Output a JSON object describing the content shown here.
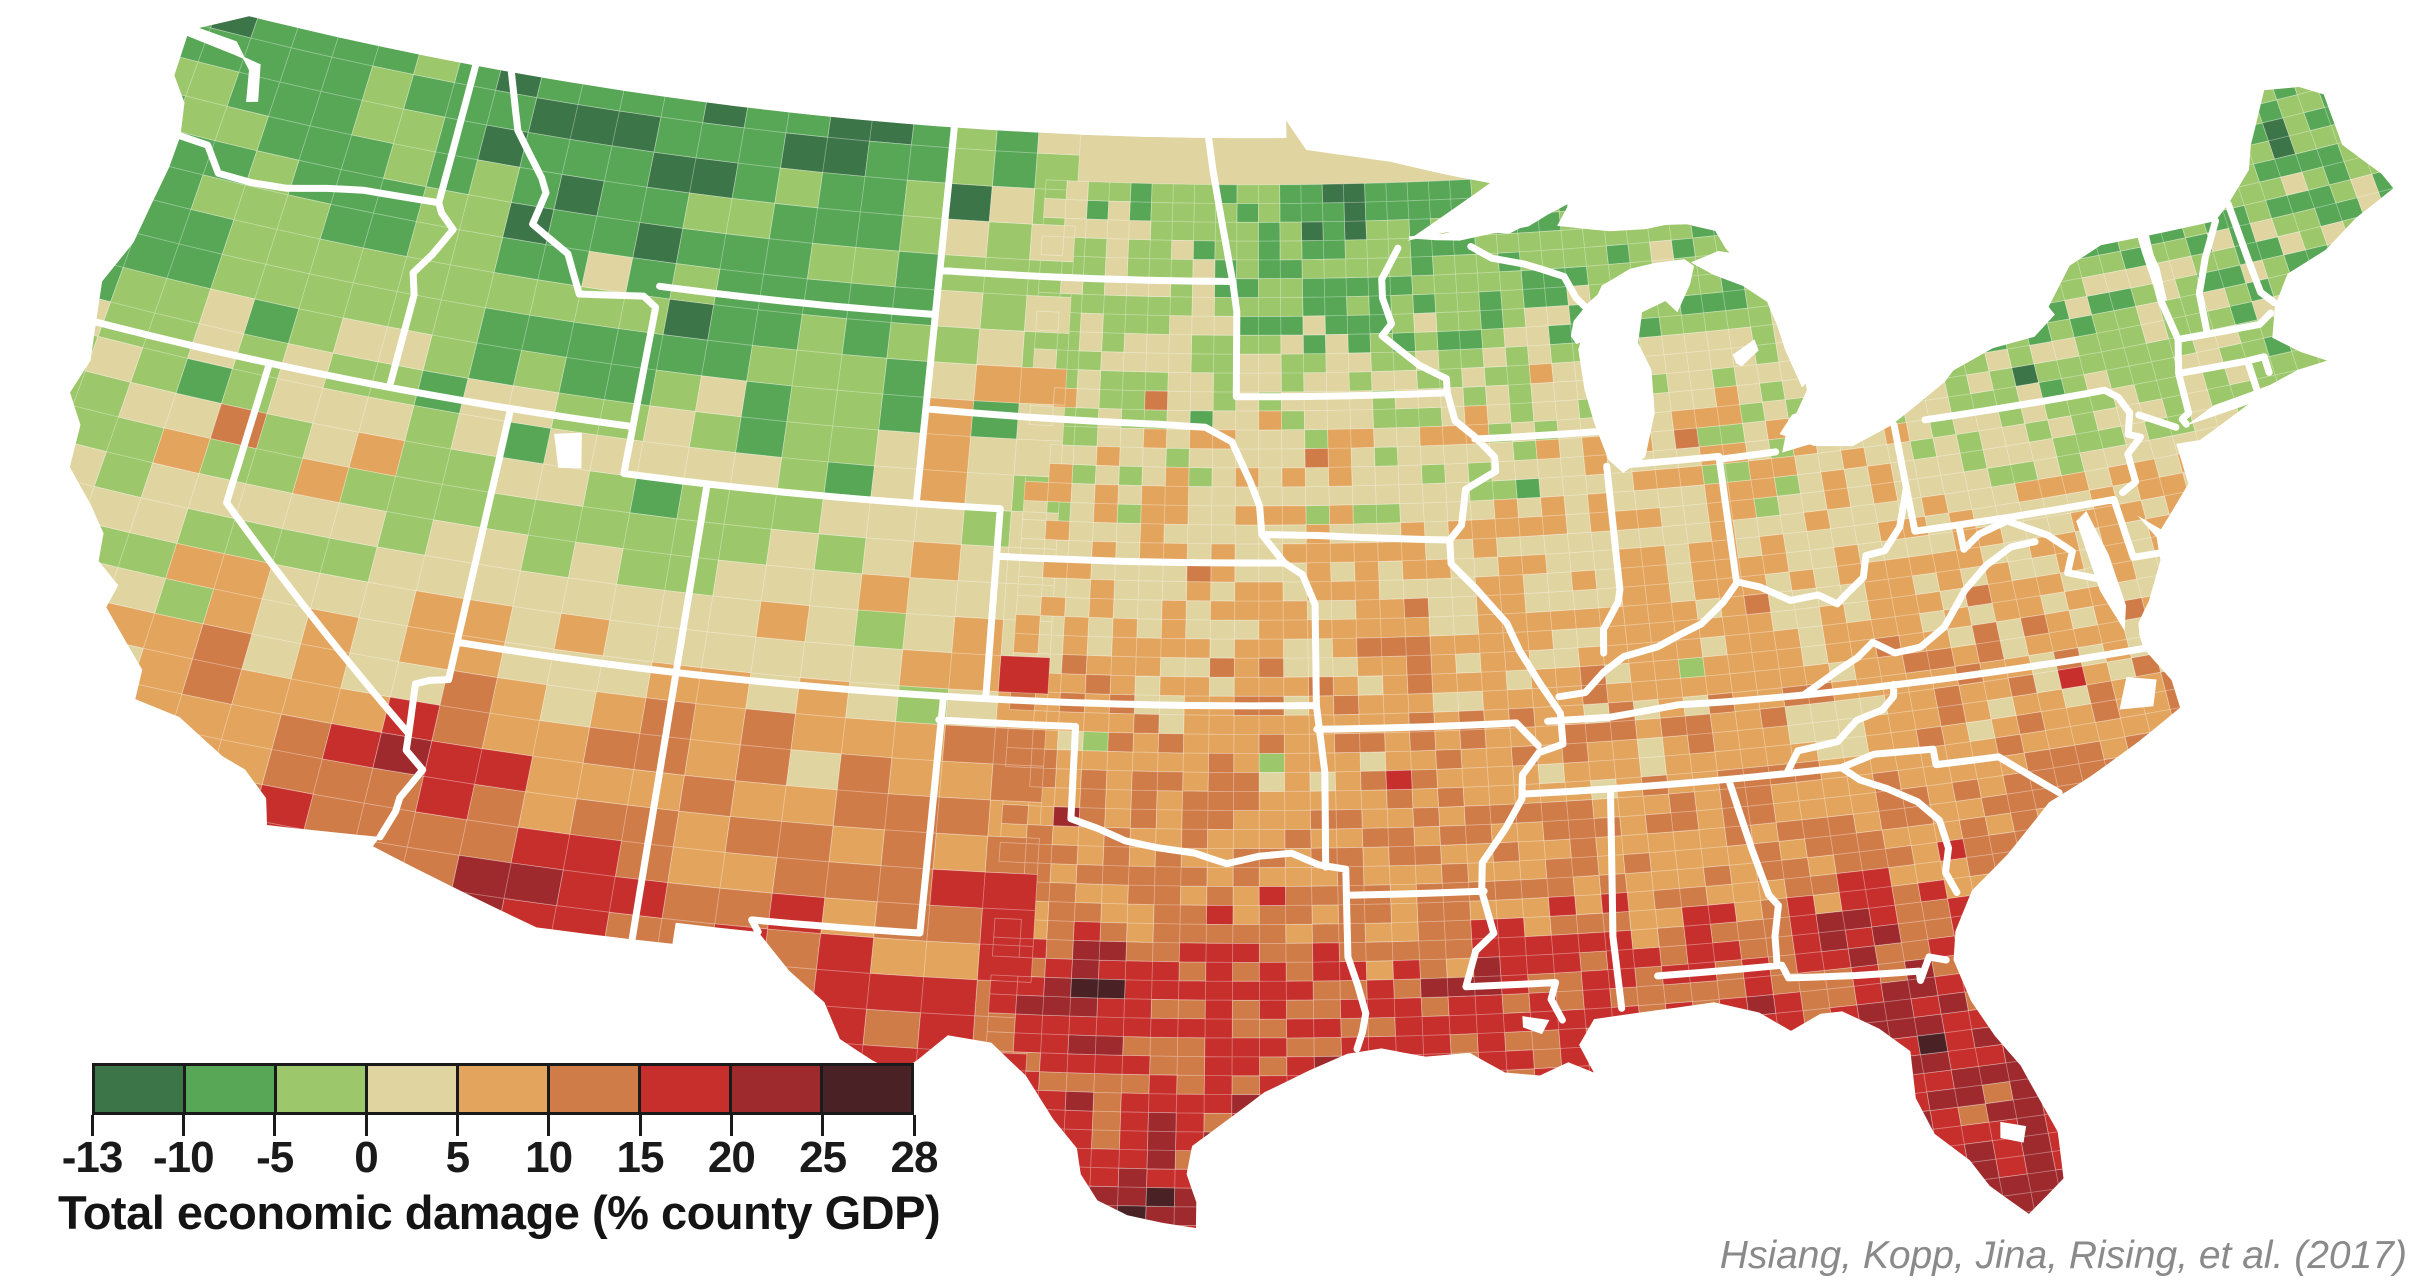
{
  "figure": {
    "background_color": "#ffffff",
    "citation": "Hsiang, Kopp, Jina, Rising, et al. (2017)",
    "citation_color": "#8a8a8a"
  },
  "legend": {
    "title": "Total economic damage (% county GDP)",
    "title_color": "#141414",
    "outline_color": "#1a1a1a",
    "tick_labels": [
      "-13",
      "-10",
      "-5",
      "0",
      "5",
      "10",
      "15",
      "20",
      "25",
      "28"
    ],
    "bin_colors": [
      "#3c7547",
      "#57a757",
      "#9cc76a",
      "#e0d4a0",
      "#e3a55e",
      "#d07c49",
      "#c72f2d",
      "#9e2a2e",
      "#4a2226"
    ]
  },
  "map": {
    "state_border_color": "#ffffff",
    "county_line_color": "rgba(255,255,255,0.38)",
    "water_color": "#ffffff"
  },
  "chart_data": {
    "type": "choropleth",
    "title": "Total economic damage (% county GDP)",
    "unit": "percent of county GDP",
    "region": "Contiguous United States, by county",
    "legend_position": "bottom-left",
    "scale": {
      "min": -13,
      "max": 28,
      "bin_edges": [
        -13,
        -10,
        -5,
        0,
        5,
        10,
        15,
        20,
        25,
        28
      ],
      "bin_colors": [
        "#3c7547",
        "#57a757",
        "#9cc76a",
        "#e0d4a0",
        "#e3a55e",
        "#d07c49",
        "#c72f2d",
        "#9e2a2e",
        "#4a2226"
      ]
    },
    "pattern": [
      {
        "region": "Pacific Northwest, northern Rockies, upper Midwest and New England",
        "value": "-10 to -5 (economic gains, green)"
      },
      {
        "region": "Great Lakes, Northeast and mountain West",
        "value": "-5 to 0 (light green)"
      },
      {
        "region": "Central Plains, Corn Belt and Mid-Atlantic",
        "value": "0 to 5 (pale tan)"
      },
      {
        "region": "Southwest deserts, lower Midwest, Appalachia and Carolinas",
        "value": "5 to 15 (orange)"
      },
      {
        "region": "Texas, Gulf Coast, Deep South and Florida",
        "value": "15 to 28 (red to dark maroon, largest damages)"
      }
    ]
  }
}
